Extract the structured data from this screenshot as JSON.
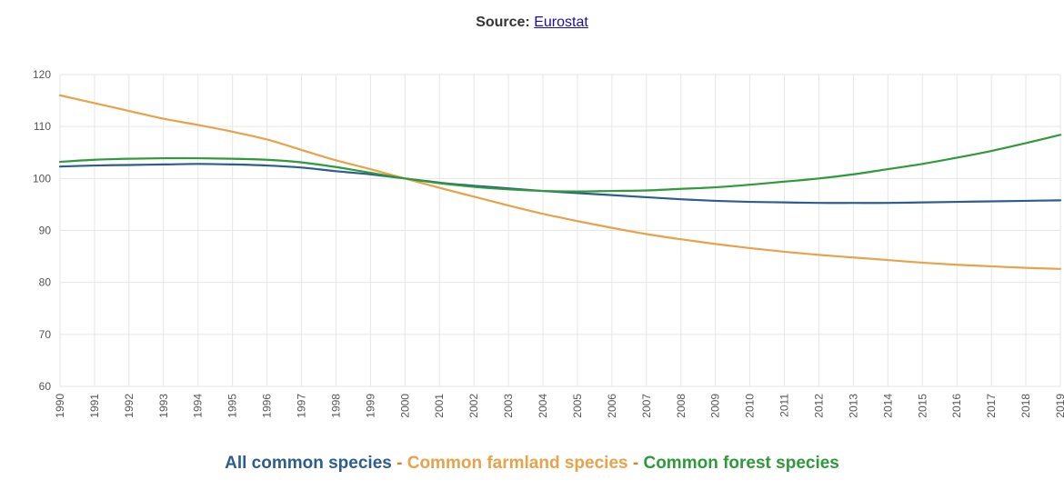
{
  "header": {
    "source_label": "Source:",
    "source_link": "Eurostat"
  },
  "colors": {
    "all": "#2c5d8f",
    "farmland": "#e8a24a",
    "forest": "#2e9a3a",
    "grid": "#e6e6e6"
  },
  "legend": {
    "all": "All common species",
    "separator": " - ",
    "farmland": "Common farmland species",
    "forest": "Common forest species"
  },
  "chart_data": {
    "type": "line",
    "x": [
      "1990",
      "1991",
      "1992",
      "1993",
      "1994",
      "1995",
      "1996",
      "1997",
      "1998",
      "1999",
      "2000",
      "2001",
      "2002",
      "2003",
      "2004",
      "2005",
      "2006",
      "2007",
      "2008",
      "2009",
      "2010",
      "2011",
      "2012",
      "2013",
      "2014",
      "2015",
      "2016",
      "2017",
      "2018",
      "2019"
    ],
    "ylim": [
      60,
      120
    ],
    "yticks": [
      60,
      70,
      80,
      90,
      100,
      110,
      120
    ],
    "grid": true,
    "legend_position": "bottom",
    "series": [
      {
        "name": "All common species",
        "color_key": "all",
        "values": [
          102.3,
          102.5,
          102.6,
          102.7,
          102.8,
          102.7,
          102.5,
          102.1,
          101.4,
          100.8,
          100,
          99.2,
          98.6,
          98.1,
          97.6,
          97.2,
          96.8,
          96.4,
          96.0,
          95.7,
          95.5,
          95.4,
          95.3,
          95.3,
          95.3,
          95.4,
          95.5,
          95.6,
          95.7,
          95.8
        ]
      },
      {
        "name": "Common farmland species",
        "color_key": "farmland",
        "values": [
          116,
          114.5,
          113,
          111.5,
          110.3,
          109,
          107.5,
          105.5,
          103.5,
          101.8,
          100,
          98.2,
          96.5,
          94.8,
          93.2,
          91.8,
          90.5,
          89.3,
          88.3,
          87.4,
          86.6,
          85.9,
          85.3,
          84.8,
          84.3,
          83.8,
          83.4,
          83.1,
          82.8,
          82.6
        ]
      },
      {
        "name": "Common forest species",
        "color_key": "forest",
        "values": [
          103.2,
          103.6,
          103.8,
          103.9,
          103.9,
          103.8,
          103.6,
          103.1,
          102.2,
          101.1,
          100,
          99.1,
          98.4,
          97.9,
          97.6,
          97.5,
          97.6,
          97.7,
          98.0,
          98.3,
          98.8,
          99.4,
          100.0,
          100.8,
          101.8,
          102.8,
          104.0,
          105.3,
          106.8,
          108.4
        ]
      }
    ]
  }
}
